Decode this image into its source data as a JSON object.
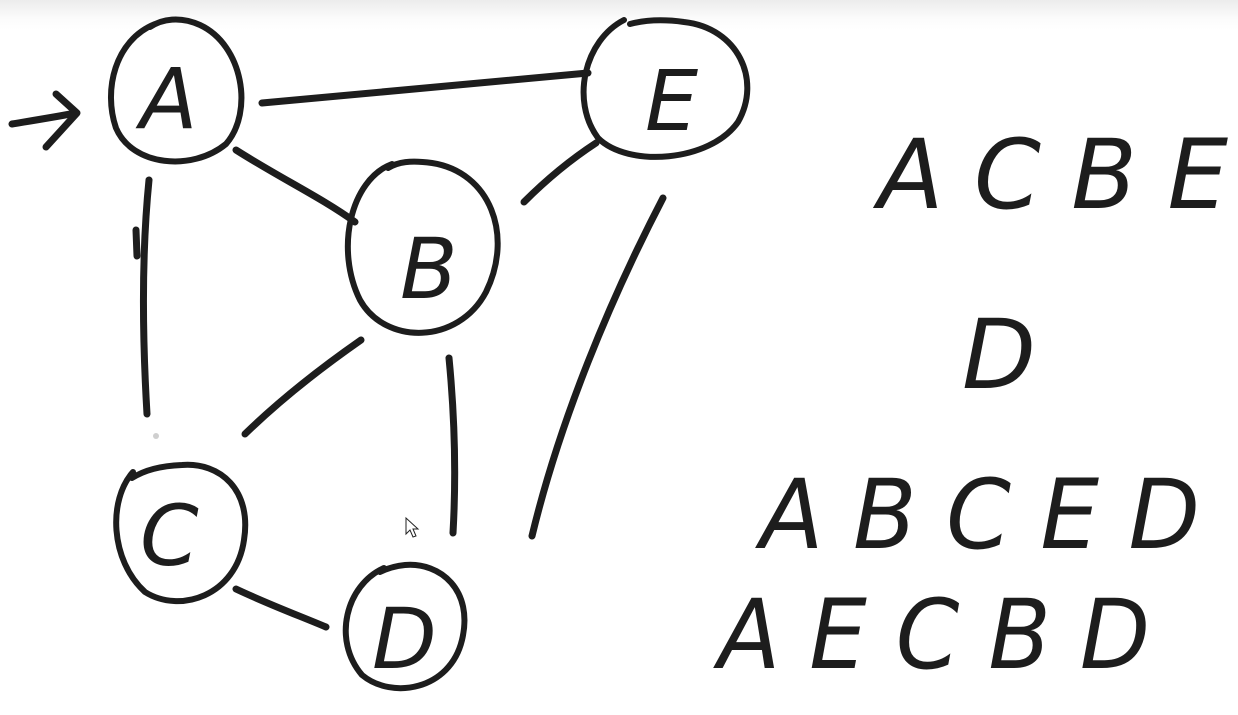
{
  "graph": {
    "nodes": {
      "A": {
        "label": "A"
      },
      "B": {
        "label": "B"
      },
      "C": {
        "label": "C"
      },
      "D": {
        "label": "D"
      },
      "E": {
        "label": "E"
      }
    },
    "edges": [
      [
        "A",
        "E"
      ],
      [
        "A",
        "B"
      ],
      [
        "A",
        "C"
      ],
      [
        "B",
        "E"
      ],
      [
        "B",
        "C"
      ],
      [
        "B",
        "D"
      ],
      [
        "C",
        "D"
      ],
      [
        "E",
        "D"
      ]
    ],
    "start_node": "A"
  },
  "sequences": [
    {
      "text": "A C B E"
    },
    {
      "text": "D"
    },
    {
      "text": "A B C E D"
    },
    {
      "text": "A E C B D"
    }
  ],
  "ink_color": "#1d1d1d",
  "background_color": "#ffffff"
}
